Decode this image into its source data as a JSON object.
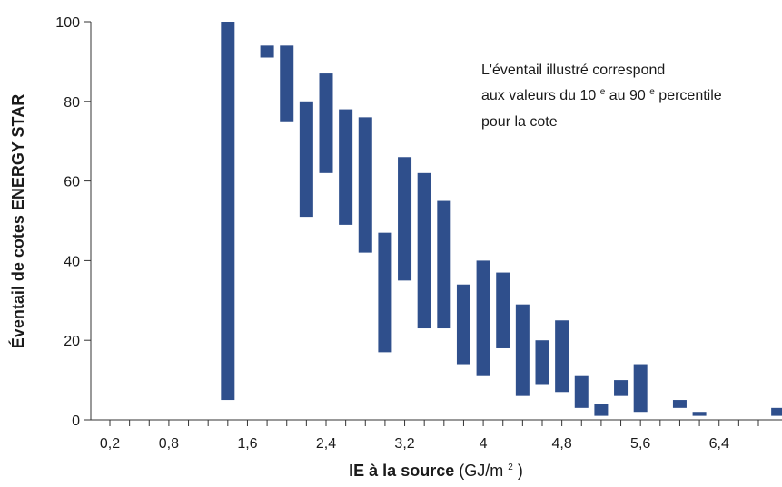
{
  "chart_data": {
    "type": "bar",
    "title": "",
    "xlabel_bold": "IE à la source",
    "xlabel_unit_prefix": " (GJ/m",
    "xlabel_unit_exp": "2",
    "xlabel_unit_suffix": ")",
    "ylabel": "Éventail de cotes ENERGY STAR",
    "xlim": [
      0,
      7.0
    ],
    "ylim": [
      0,
      100
    ],
    "grid": false,
    "legend": "none",
    "bar_color": "#2f4f8c",
    "x_tick_values": [
      0.2,
      0.4,
      0.6,
      0.8,
      1.0,
      1.2,
      1.4,
      1.6,
      1.8,
      2.0,
      2.2,
      2.4,
      2.6,
      2.8,
      3.0,
      3.2,
      3.4,
      3.6,
      3.8,
      4.0,
      4.2,
      4.4,
      4.6,
      4.8,
      5.0,
      5.2,
      5.4,
      5.6,
      5.8,
      6.0,
      6.2,
      6.4,
      6.6,
      6.8
    ],
    "x_tick_labels": [
      {
        "x": 0.2,
        "label": "0,2"
      },
      {
        "x": 0.8,
        "label": "0,8"
      },
      {
        "x": 1.6,
        "label": "1,6"
      },
      {
        "x": 2.4,
        "label": "2,4"
      },
      {
        "x": 3.2,
        "label": "3,2"
      },
      {
        "x": 4.0,
        "label": "4"
      },
      {
        "x": 4.8,
        "label": "4,8"
      },
      {
        "x": 5.6,
        "label": "5,6"
      },
      {
        "x": 6.4,
        "label": "6,4"
      }
    ],
    "y_ticks": [
      0,
      20,
      40,
      60,
      80,
      100
    ],
    "y_tick_labels": [
      "0",
      "20",
      "40",
      "60",
      "80",
      "100"
    ],
    "ranges": [
      {
        "x": 1.4,
        "low": 5,
        "high": 100
      },
      {
        "x": 1.8,
        "low": 91,
        "high": 94
      },
      {
        "x": 2.0,
        "low": 75,
        "high": 94
      },
      {
        "x": 2.2,
        "low": 51,
        "high": 80
      },
      {
        "x": 2.4,
        "low": 62,
        "high": 87
      },
      {
        "x": 2.6,
        "low": 49,
        "high": 78
      },
      {
        "x": 2.8,
        "low": 42,
        "high": 76
      },
      {
        "x": 3.0,
        "low": 17,
        "high": 47
      },
      {
        "x": 3.2,
        "low": 35,
        "high": 66
      },
      {
        "x": 3.4,
        "low": 23,
        "high": 62
      },
      {
        "x": 3.6,
        "low": 23,
        "high": 55
      },
      {
        "x": 3.8,
        "low": 14,
        "high": 34
      },
      {
        "x": 4.0,
        "low": 11,
        "high": 40
      },
      {
        "x": 4.2,
        "low": 18,
        "high": 37
      },
      {
        "x": 4.4,
        "low": 6,
        "high": 29
      },
      {
        "x": 4.6,
        "low": 9,
        "high": 20
      },
      {
        "x": 4.8,
        "low": 7,
        "high": 25
      },
      {
        "x": 5.0,
        "low": 3,
        "high": 11
      },
      {
        "x": 5.2,
        "low": 1,
        "high": 4
      },
      {
        "x": 5.4,
        "low": 6,
        "high": 10
      },
      {
        "x": 5.6,
        "low": 2,
        "high": 14
      },
      {
        "x": 6.0,
        "low": 3,
        "high": 5
      },
      {
        "x": 6.2,
        "low": 1,
        "high": 2
      },
      {
        "x": 7.0,
        "low": 1,
        "high": 3
      }
    ],
    "annotation": {
      "line1": "L'éventail illustré correspond",
      "line2_a": "aux valeurs du 10",
      "line2_sup1": "e",
      "line2_b": " au 90",
      "line2_sup2": "e",
      "line2_c": " percentile",
      "line3": "pour la cote"
    }
  }
}
